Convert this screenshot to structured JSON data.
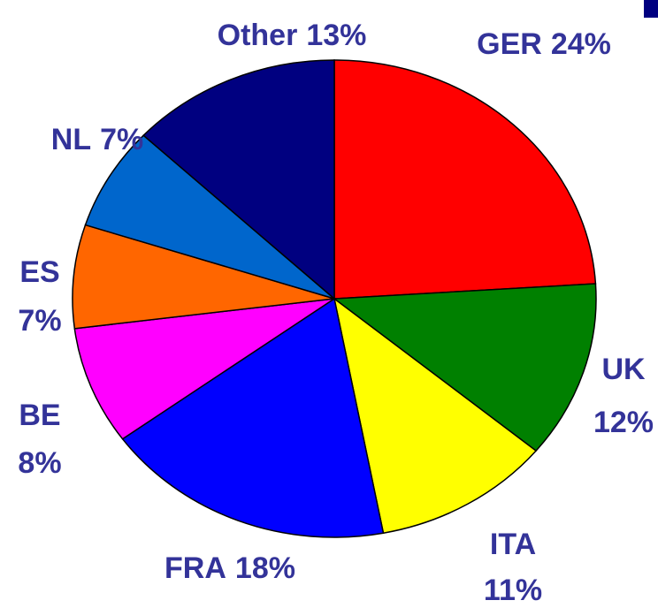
{
  "chart_data": {
    "type": "pie",
    "categories": [
      "GER",
      "UK",
      "ITA",
      "FRA",
      "BE",
      "ES",
      "NL",
      "Other"
    ],
    "values": [
      24,
      12,
      11,
      18,
      8,
      7,
      7,
      13
    ],
    "value_labels": [
      "24%",
      "12%",
      "11%",
      "18%",
      "8%",
      "7%",
      "7%",
      "13%"
    ],
    "colors": [
      "#ff0000",
      "#008000",
      "#ffff00",
      "#0000ff",
      "#ff00ff",
      "#ff6600",
      "#0066cc",
      "#000080"
    ]
  }
}
